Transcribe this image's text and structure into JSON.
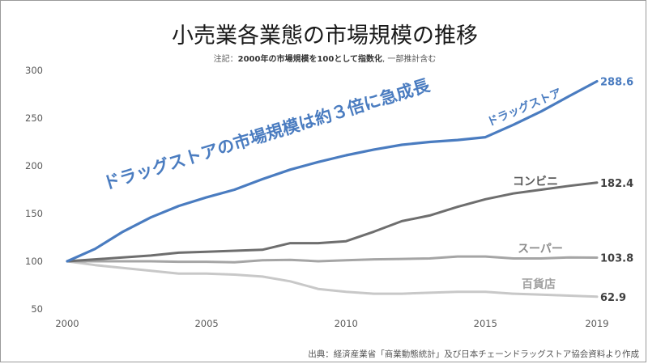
{
  "chart_data": {
    "type": "line",
    "title": "小売業各業態の市場規模の推移",
    "subtitle_prefix": "注記：",
    "subtitle_bold": "2000年の市場規模を100として指数化",
    "subtitle_suffix": ", 一部推計含む",
    "annotation": "ドラッグストアの市場規模は約３倍に急成長",
    "source": "出典：経済産業省「商業動態統計」及び日本チェーンドラッグストア協会資料より作成",
    "x_ticks": [
      "2000",
      "2005",
      "2010",
      "2015",
      "2019"
    ],
    "y_ticks": [
      "300",
      "250",
      "200",
      "150",
      "100",
      "50"
    ],
    "xlim": [
      2000,
      2019
    ],
    "ylim": [
      50,
      300
    ],
    "grid": false,
    "x": [
      2000,
      2001,
      2002,
      2003,
      2004,
      2005,
      2006,
      2007,
      2008,
      2009,
      2010,
      2011,
      2012,
      2013,
      2014,
      2015,
      2016,
      2017,
      2018,
      2019
    ],
    "series": [
      {
        "name": "ドラッグストア",
        "end_label": "288.6",
        "color": "#4a7cc0",
        "values": [
          100,
          113,
          131,
          146,
          158,
          167,
          175,
          186,
          196,
          204,
          211,
          217,
          222,
          225,
          227,
          230,
          243,
          257,
          273,
          288.6
        ]
      },
      {
        "name": "コンビニ",
        "end_label": "182.4",
        "color": "#6e6e6e",
        "values": [
          100,
          102,
          104,
          106,
          109,
          110,
          111,
          112,
          119,
          119,
          121,
          131,
          142,
          148,
          157,
          165,
          171,
          175,
          179,
          182.4
        ]
      },
      {
        "name": "スーパー",
        "end_label": "103.8",
        "color": "#a5a5a5",
        "values": [
          100,
          100,
          100,
          100,
          99.5,
          99.5,
          99,
          101,
          101.5,
          100,
          101,
          102,
          102.5,
          103,
          105,
          105,
          103,
          103,
          104,
          103.8
        ]
      },
      {
        "name": "百貨店",
        "end_label": "62.9",
        "color": "#c8c8c8",
        "values": [
          100,
          96,
          93,
          90,
          87,
          87,
          86,
          84,
          79,
          71,
          68,
          66,
          66,
          67,
          68,
          68,
          66,
          65,
          64,
          62.9
        ]
      }
    ]
  }
}
